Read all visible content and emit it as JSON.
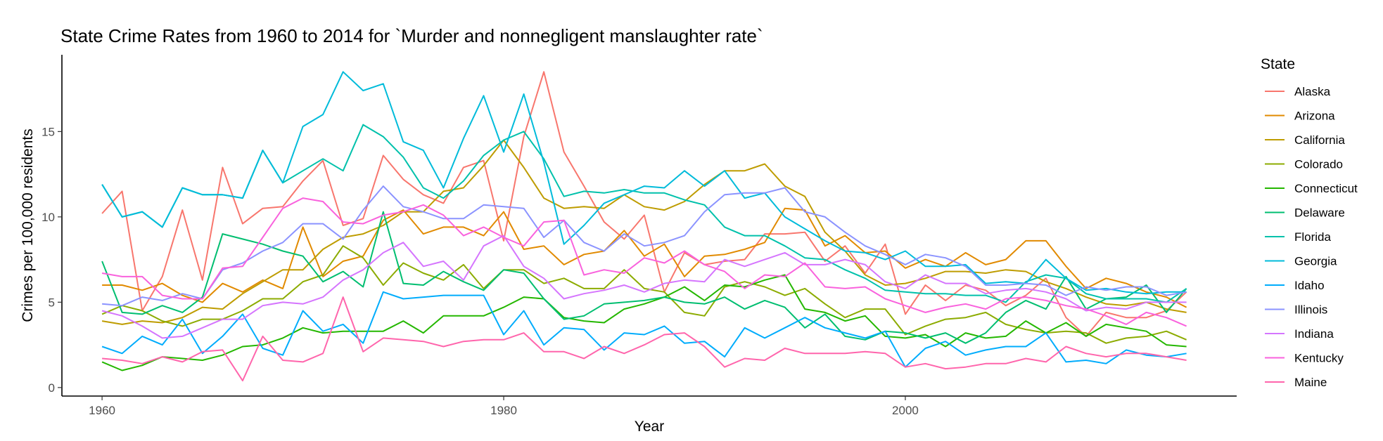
{
  "chart_data": {
    "type": "line",
    "title": "State Crime Rates from 1960 to 2014 for `Murder and nonnegligent manslaughter rate`",
    "xlabel": "Year",
    "ylabel": "Crimes per 100,000 residents",
    "xlim": [
      1958,
      2016.5
    ],
    "ylim": [
      -0.5,
      19.5
    ],
    "xticks": [
      1960,
      1980,
      2000
    ],
    "yticks": [
      0,
      5,
      10,
      15
    ],
    "grid": false,
    "legend_title": "State",
    "legend_position": "right",
    "x": [
      1960,
      1961,
      1962,
      1963,
      1964,
      1965,
      1966,
      1967,
      1968,
      1969,
      1970,
      1971,
      1972,
      1973,
      1974,
      1975,
      1976,
      1977,
      1978,
      1979,
      1980,
      1981,
      1982,
      1983,
      1984,
      1985,
      1986,
      1987,
      1988,
      1989,
      1990,
      1991,
      1992,
      1993,
      1994,
      1995,
      1996,
      1997,
      1998,
      1999,
      2000,
      2001,
      2002,
      2003,
      2004,
      2005,
      2006,
      2007,
      2008,
      2009,
      2010,
      2011,
      2012,
      2013,
      2014
    ],
    "series": [
      {
        "name": "Alaska",
        "color": "#F8766D",
        "values": [
          10.2,
          11.5,
          4.5,
          6.5,
          10.4,
          6.3,
          12.9,
          9.6,
          10.5,
          10.6,
          12.1,
          13.3,
          9.5,
          9.9,
          13.6,
          12.2,
          11.3,
          10.8,
          12.9,
          13.3,
          8.6,
          14.7,
          18.5,
          13.8,
          11.8,
          9.7,
          8.7,
          10.1,
          5.6,
          7.9,
          7.2,
          7.4,
          7.5,
          9.0,
          9.0,
          9.1,
          7.4,
          8.3,
          6.7,
          8.4,
          4.3,
          6.0,
          5.1,
          6.0,
          5.7,
          4.8,
          5.4,
          6.4,
          4.1,
          3.0,
          4.4,
          4.1,
          4.1,
          4.5,
          5.6
        ]
      },
      {
        "name": "Arizona",
        "color": "#E18A00",
        "values": [
          6.0,
          6.0,
          5.7,
          6.1,
          5.4,
          5.0,
          6.1,
          5.6,
          6.3,
          5.8,
          9.4,
          6.5,
          7.4,
          7.7,
          9.8,
          10.4,
          9.0,
          9.4,
          9.4,
          8.9,
          10.3,
          8.1,
          8.3,
          7.2,
          7.8,
          8.0,
          9.2,
          7.7,
          8.4,
          6.5,
          7.7,
          7.8,
          8.1,
          8.5,
          10.5,
          10.4,
          8.3,
          8.9,
          7.9,
          8.0,
          7.0,
          7.5,
          7.1,
          7.9,
          7.2,
          7.5,
          8.6,
          8.6,
          7.1,
          5.8,
          6.4,
          6.1,
          5.6,
          5.3,
          4.7
        ]
      },
      {
        "name": "California",
        "color": "#BE9C00",
        "values": [
          3.9,
          3.7,
          3.9,
          3.8,
          4.1,
          4.7,
          4.6,
          5.5,
          6.2,
          6.9,
          6.9,
          8.1,
          8.8,
          9.0,
          9.5,
          10.3,
          10.3,
          11.5,
          11.7,
          13.0,
          14.5,
          12.9,
          11.1,
          10.5,
          10.6,
          10.5,
          11.3,
          10.6,
          10.4,
          10.9,
          11.9,
          12.7,
          12.7,
          13.1,
          11.8,
          11.2,
          9.1,
          8.0,
          6.6,
          6.0,
          6.1,
          6.4,
          6.8,
          6.8,
          6.7,
          6.9,
          6.8,
          6.2,
          5.8,
          5.3,
          4.9,
          4.8,
          5.0,
          4.6,
          4.4
        ]
      },
      {
        "name": "Colorado",
        "color": "#8CAB00",
        "values": [
          4.3,
          4.8,
          4.5,
          3.9,
          3.6,
          4.0,
          4.0,
          4.5,
          5.2,
          5.2,
          6.2,
          6.6,
          8.3,
          7.6,
          6.0,
          7.3,
          6.7,
          6.3,
          7.2,
          5.8,
          6.9,
          6.9,
          6.1,
          6.4,
          5.8,
          5.8,
          6.9,
          5.8,
          5.6,
          4.4,
          4.2,
          5.9,
          6.2,
          5.9,
          5.4,
          5.8,
          4.9,
          4.1,
          4.6,
          4.6,
          3.1,
          3.6,
          4.0,
          4.1,
          4.4,
          3.7,
          3.4,
          3.2,
          3.3,
          3.2,
          2.6,
          2.9,
          3.0,
          3.3,
          2.8
        ]
      },
      {
        "name": "Connecticut",
        "color": "#24B700",
        "values": [
          1.5,
          1.0,
          1.3,
          1.8,
          1.7,
          1.6,
          1.9,
          2.4,
          2.5,
          2.9,
          3.5,
          3.2,
          3.3,
          3.3,
          3.3,
          3.9,
          3.2,
          4.2,
          4.2,
          4.2,
          4.7,
          5.3,
          5.2,
          4.1,
          3.9,
          3.8,
          4.6,
          4.9,
          5.3,
          5.9,
          5.1,
          6.0,
          5.9,
          6.3,
          6.6,
          4.6,
          4.4,
          3.9,
          4.2,
          3.0,
          2.9,
          3.1,
          2.4,
          3.2,
          2.9,
          3.0,
          3.9,
          3.2,
          3.8,
          3.0,
          3.7,
          3.5,
          3.3,
          2.5,
          2.4
        ]
      },
      {
        "name": "Delaware",
        "color": "#00BE70",
        "values": [
          7.4,
          4.4,
          4.3,
          4.8,
          4.4,
          5.3,
          9.0,
          8.7,
          8.4,
          8.0,
          7.7,
          6.2,
          6.8,
          5.9,
          10.3,
          6.1,
          6.0,
          6.8,
          6.2,
          5.7,
          6.9,
          6.7,
          5.2,
          4.0,
          4.2,
          4.9,
          5.0,
          5.1,
          5.3,
          5.0,
          4.9,
          5.3,
          4.6,
          5.1,
          4.7,
          3.5,
          4.3,
          3.0,
          2.8,
          3.3,
          3.2,
          2.9,
          3.2,
          2.6,
          3.2,
          4.4,
          5.1,
          4.6,
          6.5,
          4.6,
          5.2,
          5.3,
          6.0,
          4.4,
          5.8
        ]
      },
      {
        "name": "Florida",
        "color": "#00C1AB",
        "values": [
          11.9,
          10.0,
          10.3,
          9.4,
          11.7,
          11.3,
          11.3,
          11.1,
          13.9,
          12.0,
          12.7,
          13.4,
          12.7,
          15.4,
          14.7,
          13.5,
          11.7,
          11.1,
          12.1,
          13.6,
          14.5,
          15.0,
          13.4,
          11.2,
          11.5,
          11.4,
          11.6,
          11.4,
          11.4,
          11.0,
          10.7,
          9.4,
          8.9,
          8.9,
          8.3,
          7.6,
          7.5,
          6.9,
          6.4,
          5.7,
          5.6,
          5.5,
          5.5,
          5.4,
          5.4,
          5.0,
          6.2,
          6.6,
          6.4,
          5.5,
          5.2,
          5.2,
          5.2,
          5.0,
          5.8
        ]
      },
      {
        "name": "Georgia",
        "color": "#00BBDA",
        "values": [
          11.9,
          10.0,
          10.3,
          9.4,
          11.7,
          11.3,
          11.3,
          11.1,
          13.9,
          12.0,
          15.3,
          16.0,
          18.5,
          17.4,
          17.8,
          14.4,
          13.9,
          11.7,
          14.6,
          17.1,
          13.8,
          17.2,
          13.2,
          8.4,
          9.5,
          10.8,
          11.3,
          11.8,
          11.7,
          12.7,
          11.8,
          12.7,
          11.1,
          11.4,
          10.0,
          9.3,
          8.6,
          8.0,
          7.9,
          7.5,
          8.0,
          7.1,
          7.1,
          7.2,
          6.1,
          6.2,
          6.1,
          7.5,
          6.4,
          5.7,
          5.8,
          5.6,
          5.5,
          5.6,
          5.6
        ]
      },
      {
        "name": "Idaho",
        "color": "#00ACFC",
        "values": [
          2.4,
          2.0,
          3.0,
          2.5,
          4.0,
          2.0,
          3.0,
          4.3,
          2.3,
          1.9,
          4.5,
          3.3,
          3.7,
          2.6,
          5.6,
          5.2,
          5.3,
          5.4,
          5.4,
          5.4,
          3.1,
          4.5,
          2.5,
          3.5,
          3.4,
          2.2,
          3.2,
          3.1,
          3.6,
          2.6,
          2.7,
          1.8,
          3.5,
          2.9,
          3.5,
          4.1,
          3.5,
          3.2,
          2.9,
          3.3,
          1.2,
          2.3,
          2.7,
          1.9,
          2.2,
          2.4,
          2.4,
          3.2,
          1.5,
          1.6,
          1.4,
          2.2,
          1.9,
          1.8,
          2.0
        ]
      },
      {
        "name": "Illinois",
        "color": "#8B93FF",
        "values": [
          4.9,
          4.8,
          5.3,
          5.1,
          5.5,
          5.2,
          6.9,
          7.3,
          8.0,
          8.5,
          9.6,
          9.6,
          8.7,
          10.4,
          11.8,
          10.6,
          10.3,
          9.9,
          9.9,
          10.7,
          10.6,
          10.5,
          8.8,
          9.8,
          8.5,
          8.0,
          9.0,
          8.3,
          8.5,
          8.9,
          10.3,
          11.3,
          11.4,
          11.4,
          11.7,
          10.3,
          10.0,
          9.1,
          8.3,
          7.8,
          7.2,
          7.8,
          7.6,
          7.1,
          6.0,
          6.0,
          6.1,
          6.0,
          5.4,
          5.9,
          5.7,
          5.9,
          5.9,
          5.4,
          5.6
        ]
      },
      {
        "name": "Indiana",
        "color": "#D575FE",
        "values": [
          4.5,
          4.2,
          3.6,
          2.9,
          3.0,
          3.5,
          4.0,
          4.0,
          4.8,
          5.0,
          4.9,
          5.3,
          6.3,
          6.9,
          7.9,
          8.5,
          7.1,
          7.4,
          6.3,
          8.3,
          8.9,
          7.1,
          6.4,
          5.2,
          5.5,
          5.7,
          6.0,
          5.6,
          6.1,
          6.3,
          6.2,
          7.5,
          7.1,
          7.5,
          7.9,
          7.2,
          7.2,
          7.5,
          7.2,
          6.2,
          5.8,
          6.6,
          6.1,
          6.1,
          5.5,
          5.7,
          5.8,
          5.6,
          5.2,
          4.5,
          4.7,
          4.6,
          5.0,
          5.0,
          5.0
        ]
      },
      {
        "name": "Kentucky",
        "color": "#F962DD",
        "values": [
          6.7,
          6.5,
          6.5,
          5.4,
          5.2,
          5.2,
          7.0,
          7.1,
          8.8,
          10.5,
          11.1,
          10.9,
          9.7,
          9.6,
          10.1,
          10.3,
          10.7,
          10.1,
          8.9,
          9.4,
          8.8,
          8.3,
          9.7,
          9.8,
          6.6,
          6.9,
          6.7,
          7.6,
          7.3,
          8.0,
          7.2,
          6.8,
          5.8,
          6.6,
          6.5,
          7.3,
          5.9,
          5.8,
          5.9,
          5.2,
          4.8,
          4.4,
          4.7,
          4.9,
          4.6,
          5.2,
          5.3,
          5.1,
          4.8,
          4.6,
          4.2,
          3.7,
          4.4,
          4.1,
          3.6
        ]
      },
      {
        "name": "Maine",
        "color": "#FF65AC",
        "values": [
          1.7,
          1.6,
          1.4,
          1.8,
          1.5,
          2.1,
          2.2,
          0.4,
          3.0,
          1.6,
          1.5,
          2.0,
          5.3,
          2.1,
          2.9,
          2.8,
          2.7,
          2.4,
          2.7,
          2.8,
          2.8,
          3.2,
          2.1,
          2.1,
          1.7,
          2.4,
          2.0,
          2.5,
          3.1,
          3.2,
          2.4,
          1.2,
          1.7,
          1.6,
          2.3,
          2.0,
          2.0,
          2.0,
          2.1,
          2.0,
          1.2,
          1.4,
          1.1,
          1.2,
          1.4,
          1.4,
          1.7,
          1.5,
          2.4,
          2.0,
          1.8,
          2.0,
          2.0,
          1.8,
          1.6
        ]
      }
    ]
  }
}
